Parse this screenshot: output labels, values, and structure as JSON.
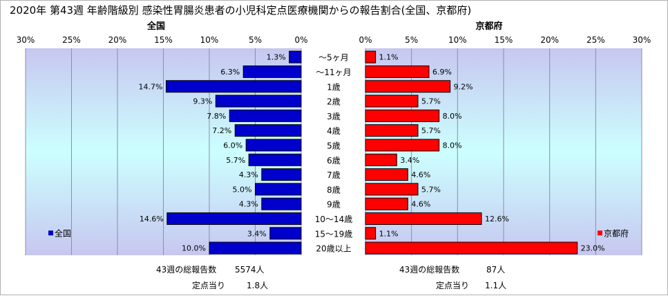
{
  "title": "2020年 第43週 年齢階級別 感染性胃腸炎患者の小児科定点医療機関からの報告割合(全国、京都府)",
  "categories": [
    "～5ヶ月",
    "～11ヶ月",
    "1歳",
    "2歳",
    "3歳",
    "4歳",
    "5歳",
    "6歳",
    "7歳",
    "8歳",
    "9歳",
    "10～14歳",
    "15～19歳",
    "20歳以上"
  ],
  "x_ticks": [
    "30%",
    "25%",
    "20%",
    "15%",
    "10%",
    "5%",
    "0%"
  ],
  "x_ticks_right": [
    "0%",
    "5%",
    "10%",
    "15%",
    "20%",
    "25%",
    "30%"
  ],
  "colors": {
    "national": "#0000cc",
    "kyoto": "#ff0000",
    "plot_top": "#c7c7f0",
    "plot_mid": "#ccffff"
  },
  "chart_data": [
    {
      "type": "bar",
      "orientation": "horizontal",
      "title": "全国",
      "categories": [
        "～5ヶ月",
        "～11ヶ月",
        "1歳",
        "2歳",
        "3歳",
        "4歳",
        "5歳",
        "6歳",
        "7歳",
        "8歳",
        "9歳",
        "10～14歳",
        "15～19歳",
        "20歳以上"
      ],
      "series": [
        {
          "name": "全国",
          "values": [
            1.3,
            6.3,
            14.7,
            9.3,
            7.8,
            7.2,
            6.0,
            5.7,
            4.3,
            5.0,
            4.3,
            14.6,
            3.4,
            10.0
          ]
        }
      ],
      "value_labels": [
        "1.3%",
        "6.3%",
        "14.7%",
        "9.3%",
        "7.8%",
        "7.2%",
        "6.0%",
        "5.7%",
        "4.3%",
        "5.0%",
        "4.3%",
        "14.6%",
        "3.4%",
        "10.0%"
      ],
      "xlim": [
        0,
        30
      ],
      "axis_reversed": true,
      "grid": true,
      "legend": "bottom-left"
    },
    {
      "type": "bar",
      "orientation": "horizontal",
      "title": "京都府",
      "categories": [
        "～5ヶ月",
        "～11ヶ月",
        "1歳",
        "2歳",
        "3歳",
        "4歳",
        "5歳",
        "6歳",
        "7歳",
        "8歳",
        "9歳",
        "10～14歳",
        "15～19歳",
        "20歳以上"
      ],
      "series": [
        {
          "name": "京都府",
          "values": [
            1.1,
            6.9,
            9.2,
            5.7,
            8.0,
            5.7,
            8.0,
            3.4,
            4.6,
            5.7,
            4.6,
            12.6,
            1.1,
            23.0
          ]
        }
      ],
      "value_labels": [
        "1.1%",
        "6.9%",
        "9.2%",
        "5.7%",
        "8.0%",
        "5.7%",
        "8.0%",
        "3.4%",
        "4.6%",
        "5.7%",
        "4.6%",
        "12.6%",
        "1.1%",
        "23.0%"
      ],
      "xlim": [
        0,
        30
      ],
      "grid": true,
      "legend": "bottom-right"
    }
  ],
  "footer": {
    "left_total_label": "43週の総報告数",
    "left_total_value": "5574人",
    "left_perpoint_label": "定点当り",
    "left_perpoint_value": "1.8人",
    "right_total_label": "43週の総報告数",
    "right_total_value": "87人",
    "right_perpoint_label": "定点当り",
    "right_perpoint_value": "1.1人"
  }
}
